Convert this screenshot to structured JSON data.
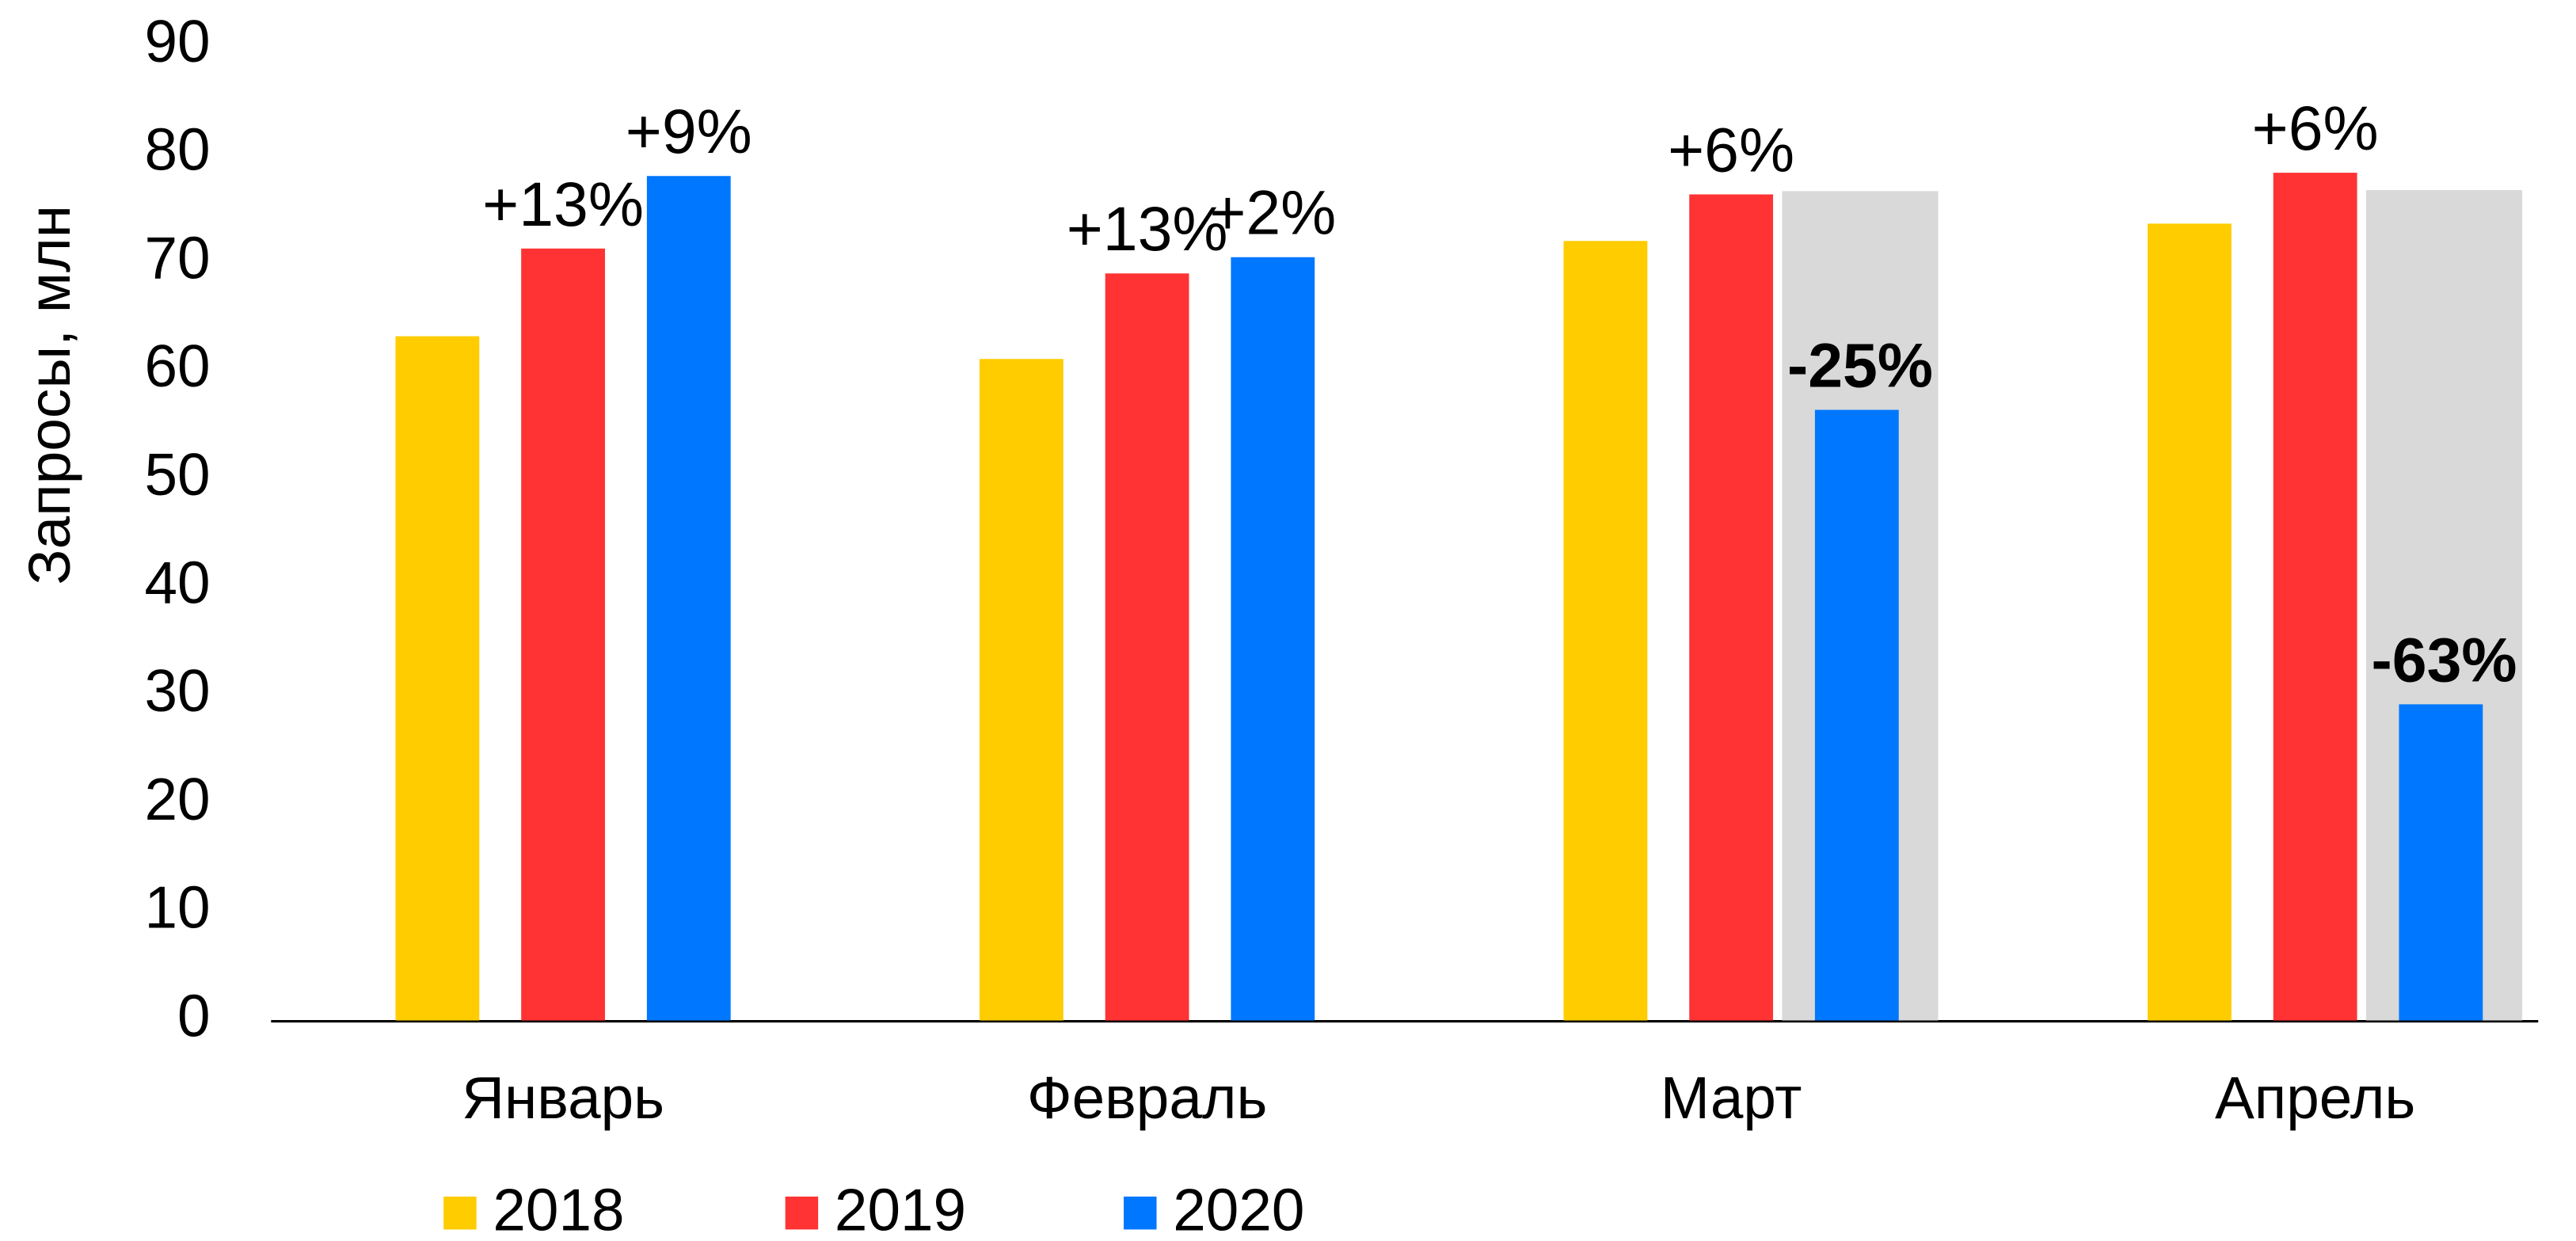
{
  "chart_data": {
    "type": "bar",
    "y_label": "Запросы, млн",
    "categories": [
      "Январь",
      "Февраль",
      "Март",
      "Апрель"
    ],
    "series": [
      {
        "name": "2018",
        "color": "#ffcc00",
        "values": [
          63.2,
          61.1,
          72.0,
          73.6
        ],
        "annotations": [
          null,
          null,
          null,
          null
        ]
      },
      {
        "name": "2019",
        "color": "#ff3333",
        "values": [
          71.3,
          69.0,
          76.3,
          78.3
        ],
        "annotations": [
          "+13%",
          "+13%",
          "+6%",
          "+6%"
        ]
      },
      {
        "name": "2020",
        "color": "#0077ff",
        "values": [
          78.0,
          70.5,
          56.4,
          29.2
        ],
        "annotations": [
          "+9%",
          "+2%",
          "-25%",
          "-63%"
        ],
        "bold_annotations": [
          false,
          false,
          true,
          true
        ],
        "background_values": [
          null,
          null,
          76.6,
          76.7
        ],
        "background_color": "#d9d9d9"
      }
    ],
    "ylim": [
      0,
      90
    ],
    "yticks": [
      0,
      10,
      20,
      30,
      40,
      50,
      60,
      70,
      80,
      90
    ],
    "legend": "bottom-left"
  }
}
